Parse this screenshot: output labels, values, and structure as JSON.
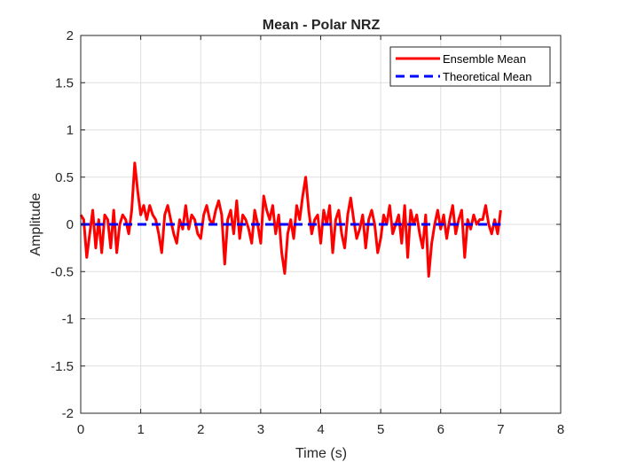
{
  "chart_data": {
    "type": "line",
    "title": "Mean - Polar NRZ",
    "xlabel": "Time (s)",
    "ylabel": "Amplitude",
    "xlim": [
      0,
      8
    ],
    "ylim": [
      -2,
      2
    ],
    "xticks": [
      0,
      1,
      2,
      3,
      4,
      5,
      6,
      7,
      8
    ],
    "xtick_labels": [
      "0",
      "1",
      "2",
      "3",
      "4",
      "5",
      "6",
      "7",
      "8"
    ],
    "yticks": [
      -2,
      -1.5,
      -1,
      -0.5,
      0,
      0.5,
      1,
      1.5,
      2
    ],
    "ytick_labels": [
      "-2",
      "-1.5",
      "-1",
      "-0.5",
      "0",
      "0.5",
      "1",
      "1.5",
      "2"
    ],
    "grid": true,
    "legend_position": "top-right",
    "series": [
      {
        "name": "Ensemble Mean",
        "color": "#ff0000",
        "style": "solid",
        "x": [
          0,
          0.05,
          0.1,
          0.15,
          0.2,
          0.25,
          0.3,
          0.35,
          0.4,
          0.45,
          0.5,
          0.55,
          0.6,
          0.65,
          0.7,
          0.75,
          0.8,
          0.85,
          0.9,
          0.95,
          1.0,
          1.05,
          1.1,
          1.15,
          1.2,
          1.25,
          1.3,
          1.35,
          1.4,
          1.45,
          1.5,
          1.55,
          1.6,
          1.65,
          1.7,
          1.75,
          1.8,
          1.85,
          1.9,
          1.95,
          2.0,
          2.05,
          2.1,
          2.15,
          2.2,
          2.25,
          2.3,
          2.35,
          2.4,
          2.45,
          2.5,
          2.55,
          2.6,
          2.65,
          2.7,
          2.75,
          2.8,
          2.85,
          2.9,
          2.95,
          3.0,
          3.05,
          3.1,
          3.15,
          3.2,
          3.25,
          3.3,
          3.35,
          3.4,
          3.45,
          3.5,
          3.55,
          3.6,
          3.65,
          3.7,
          3.75,
          3.8,
          3.85,
          3.9,
          3.95,
          4.0,
          4.05,
          4.1,
          4.15,
          4.2,
          4.25,
          4.3,
          4.35,
          4.4,
          4.45,
          4.5,
          4.55,
          4.6,
          4.65,
          4.7,
          4.75,
          4.8,
          4.85,
          4.9,
          4.95,
          5.0,
          5.05,
          5.1,
          5.15,
          5.2,
          5.25,
          5.3,
          5.35,
          5.4,
          5.45,
          5.5,
          5.55,
          5.6,
          5.65,
          5.7,
          5.75,
          5.8,
          5.85,
          5.9,
          5.95,
          6.0,
          6.05,
          6.1,
          6.15,
          6.2,
          6.25,
          6.3,
          6.35,
          6.4,
          6.45,
          6.5,
          6.55,
          6.6,
          6.65,
          6.7,
          6.75,
          6.8,
          6.85,
          6.9,
          6.95,
          7.0
        ],
        "y": [
          0.1,
          0.05,
          -0.35,
          -0.1,
          0.15,
          -0.25,
          0.05,
          -0.3,
          0.1,
          0.05,
          -0.25,
          0.15,
          -0.3,
          0.0,
          0.1,
          0.05,
          -0.1,
          0.15,
          0.65,
          0.35,
          0.1,
          0.2,
          0.05,
          0.2,
          0.1,
          0.05,
          -0.1,
          -0.3,
          0.1,
          0.2,
          0.05,
          -0.1,
          -0.2,
          0.05,
          -0.05,
          0.2,
          -0.05,
          0.1,
          0.05,
          -0.1,
          -0.15,
          0.1,
          0.2,
          0.05,
          0.0,
          0.15,
          0.25,
          0.1,
          -0.42,
          0.05,
          0.15,
          -0.1,
          0.25,
          -0.15,
          0.1,
          0.05,
          -0.05,
          -0.2,
          0.15,
          0.0,
          -0.2,
          0.3,
          0.15,
          0.05,
          0.2,
          -0.1,
          0.1,
          -0.3,
          -0.52,
          -0.1,
          0.05,
          -0.15,
          0.2,
          0.05,
          0.3,
          0.5,
          0.15,
          -0.1,
          0.05,
          0.1,
          -0.2,
          0.15,
          0.0,
          0.2,
          -0.3,
          0.05,
          0.15,
          -0.1,
          -0.25,
          0.1,
          0.28,
          0.05,
          -0.15,
          -0.05,
          0.1,
          -0.25,
          0.05,
          0.15,
          0.0,
          -0.3,
          -0.15,
          0.1,
          0.0,
          0.2,
          -0.1,
          0.0,
          0.1,
          -0.2,
          0.2,
          -0.35,
          0.15,
          0.0,
          0.1,
          -0.1,
          -0.25,
          0.1,
          -0.55,
          -0.2,
          0.0,
          0.15,
          -0.05,
          0.1,
          -0.15,
          0.05,
          0.2,
          -0.1,
          0.05,
          0.15,
          -0.35,
          0.05,
          -0.05,
          0.1,
          0.0,
          0.05,
          0.05,
          0.2,
          0.0,
          -0.1,
          0.05,
          -0.1,
          0.15
        ]
      },
      {
        "name": "Theoretical Mean",
        "color": "#0000ff",
        "style": "dashed",
        "x": [
          0,
          7
        ],
        "y": [
          0,
          0
        ]
      }
    ]
  }
}
